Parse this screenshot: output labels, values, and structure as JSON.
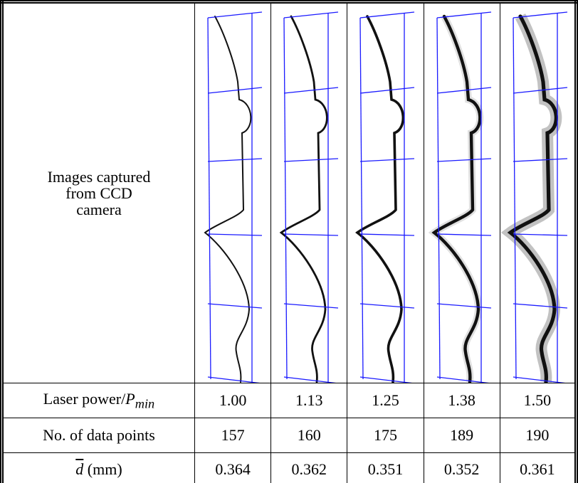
{
  "table": {
    "rows": [
      {
        "label": "Images captured from CCD camera"
      },
      {
        "label": {
          "text": "Laser power/",
          "symbol": "P",
          "subscript": "min"
        },
        "cells": [
          "1.00",
          "1.13",
          "1.25",
          "1.38",
          "1.50"
        ]
      },
      {
        "label": {
          "text": "No. of data points"
        },
        "cells": [
          "157",
          "160",
          "175",
          "189",
          "190"
        ]
      },
      {
        "label": {
          "symbol": "d",
          "text": " (mm)"
        },
        "cells": [
          "0.364",
          "0.362",
          "0.351",
          "0.352",
          "0.361"
        ]
      }
    ]
  }
}
